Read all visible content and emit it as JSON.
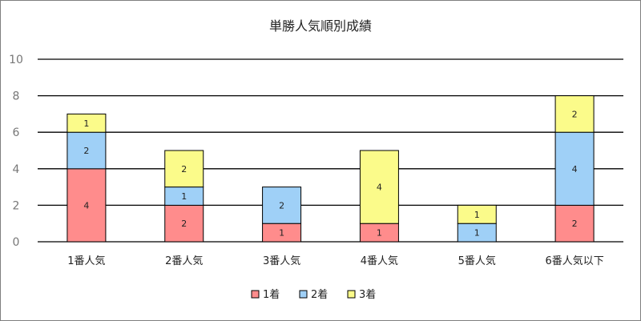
{
  "chart_data": {
    "type": "bar",
    "stacked": true,
    "title": "単勝人気順別成績",
    "categories": [
      "1番人気",
      "2番人気",
      "3番人気",
      "4番人気",
      "5番人気",
      "6番人気以下"
    ],
    "series": [
      {
        "name": "1着",
        "color": "#ff8c8c",
        "values": [
          4,
          2,
          1,
          1,
          0,
          2
        ]
      },
      {
        "name": "2着",
        "color": "#9fd0f7",
        "values": [
          2,
          1,
          2,
          0,
          1,
          4
        ]
      },
      {
        "name": "3着",
        "color": "#fbfb8a",
        "values": [
          1,
          2,
          0,
          4,
          1,
          2
        ]
      }
    ],
    "ylim": [
      0,
      10
    ],
    "yticks": [
      0,
      2,
      4,
      6,
      8,
      10
    ],
    "grid": true,
    "legend_position": "bottom"
  }
}
